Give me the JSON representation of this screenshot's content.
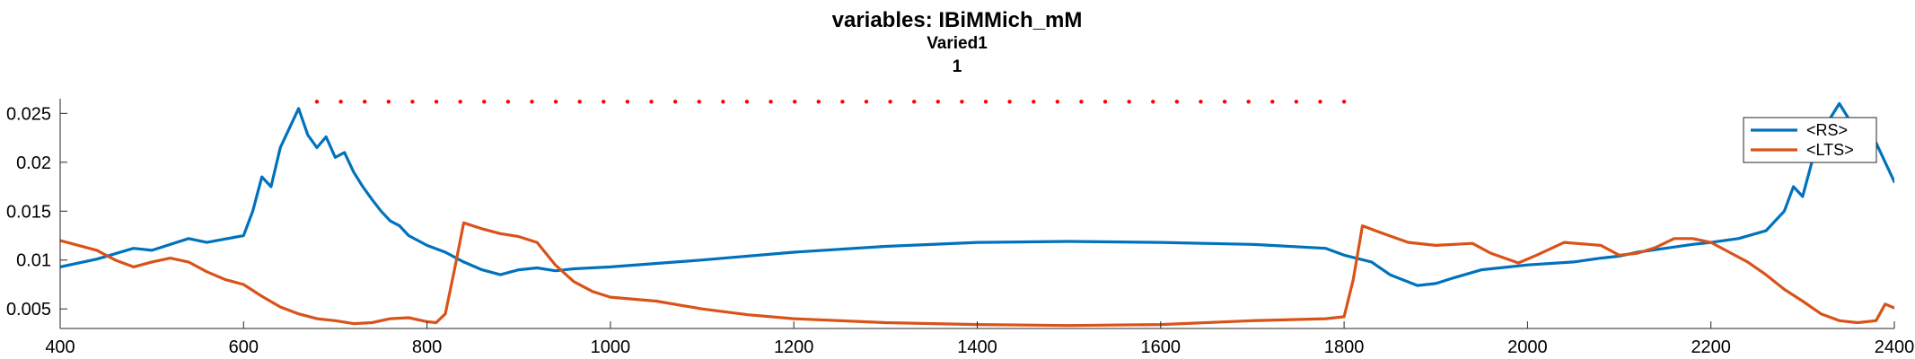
{
  "title_lines": [
    "variables: IBiMMich_mM",
    "Varied1",
    "1"
  ],
  "chart_data": {
    "type": "line",
    "xlim": [
      400,
      2400
    ],
    "ylim": [
      0.003,
      0.0265
    ],
    "x_ticks": [
      400,
      600,
      800,
      1000,
      1200,
      1400,
      1600,
      1800,
      2000,
      2200,
      2400
    ],
    "x_tick_labels": [
      "400",
      "600",
      "800",
      "1000",
      "1200",
      "1400",
      "1600",
      "1800",
      "2000",
      "2200",
      "2400"
    ],
    "y_ticks": [
      0.005,
      0.01,
      0.015,
      0.02,
      0.025
    ],
    "y_tick_labels": [
      "0.005",
      "0.01",
      "0.015",
      "0.02",
      "0.025"
    ],
    "grid": false,
    "legend_position": "top-right",
    "series": [
      {
        "name": "<RS>",
        "color": "#0072BD",
        "points": [
          [
            400,
            0.0093
          ],
          [
            440,
            0.0101
          ],
          [
            480,
            0.0112
          ],
          [
            500,
            0.011
          ],
          [
            540,
            0.0122
          ],
          [
            560,
            0.0118
          ],
          [
            600,
            0.0125
          ],
          [
            610,
            0.015
          ],
          [
            620,
            0.0185
          ],
          [
            630,
            0.0175
          ],
          [
            640,
            0.0215
          ],
          [
            650,
            0.0235
          ],
          [
            660,
            0.0255
          ],
          [
            670,
            0.0228
          ],
          [
            680,
            0.0215
          ],
          [
            690,
            0.0226
          ],
          [
            700,
            0.0205
          ],
          [
            710,
            0.021
          ],
          [
            720,
            0.019
          ],
          [
            730,
            0.0175
          ],
          [
            740,
            0.0162
          ],
          [
            750,
            0.015
          ],
          [
            760,
            0.014
          ],
          [
            770,
            0.0135
          ],
          [
            780,
            0.0125
          ],
          [
            800,
            0.0115
          ],
          [
            820,
            0.0108
          ],
          [
            840,
            0.0098
          ],
          [
            860,
            0.009
          ],
          [
            880,
            0.0085
          ],
          [
            900,
            0.009
          ],
          [
            920,
            0.0092
          ],
          [
            940,
            0.0089
          ],
          [
            960,
            0.0091
          ],
          [
            1000,
            0.0093
          ],
          [
            1100,
            0.01
          ],
          [
            1200,
            0.0108
          ],
          [
            1300,
            0.0114
          ],
          [
            1400,
            0.0118
          ],
          [
            1500,
            0.0119
          ],
          [
            1600,
            0.0118
          ],
          [
            1700,
            0.0116
          ],
          [
            1780,
            0.0112
          ],
          [
            1800,
            0.0105
          ],
          [
            1830,
            0.0098
          ],
          [
            1850,
            0.0085
          ],
          [
            1880,
            0.0074
          ],
          [
            1900,
            0.0076
          ],
          [
            1920,
            0.0082
          ],
          [
            1950,
            0.009
          ],
          [
            1980,
            0.0093
          ],
          [
            2000,
            0.0095
          ],
          [
            2050,
            0.0098
          ],
          [
            2080,
            0.0102
          ],
          [
            2100,
            0.0104
          ],
          [
            2120,
            0.0108
          ],
          [
            2150,
            0.0112
          ],
          [
            2180,
            0.0116
          ],
          [
            2200,
            0.0118
          ],
          [
            2230,
            0.0122
          ],
          [
            2260,
            0.013
          ],
          [
            2280,
            0.015
          ],
          [
            2290,
            0.0175
          ],
          [
            2300,
            0.0165
          ],
          [
            2310,
            0.02
          ],
          [
            2320,
            0.0215
          ],
          [
            2330,
            0.0245
          ],
          [
            2340,
            0.026
          ],
          [
            2350,
            0.0245
          ],
          [
            2360,
            0.0228
          ],
          [
            2370,
            0.023
          ],
          [
            2380,
            0.022
          ],
          [
            2390,
            0.02
          ],
          [
            2400,
            0.018
          ]
        ]
      },
      {
        "name": "<LTS>",
        "color": "#D95319",
        "points": [
          [
            400,
            0.012
          ],
          [
            420,
            0.0115
          ],
          [
            440,
            0.011
          ],
          [
            460,
            0.01
          ],
          [
            480,
            0.0093
          ],
          [
            500,
            0.0098
          ],
          [
            520,
            0.0102
          ],
          [
            540,
            0.0098
          ],
          [
            560,
            0.0088
          ],
          [
            580,
            0.008
          ],
          [
            600,
            0.0075
          ],
          [
            620,
            0.0063
          ],
          [
            640,
            0.0052
          ],
          [
            660,
            0.0045
          ],
          [
            680,
            0.004
          ],
          [
            700,
            0.0038
          ],
          [
            720,
            0.0035
          ],
          [
            740,
            0.0036
          ],
          [
            760,
            0.004
          ],
          [
            780,
            0.0041
          ],
          [
            800,
            0.0037
          ],
          [
            810,
            0.0036
          ],
          [
            820,
            0.0045
          ],
          [
            830,
            0.009
          ],
          [
            840,
            0.0138
          ],
          [
            860,
            0.0132
          ],
          [
            880,
            0.0127
          ],
          [
            900,
            0.0124
          ],
          [
            920,
            0.0118
          ],
          [
            940,
            0.0095
          ],
          [
            960,
            0.0078
          ],
          [
            980,
            0.0068
          ],
          [
            1000,
            0.0062
          ],
          [
            1050,
            0.0058
          ],
          [
            1100,
            0.005
          ],
          [
            1150,
            0.0044
          ],
          [
            1200,
            0.004
          ],
          [
            1300,
            0.0036
          ],
          [
            1400,
            0.0034
          ],
          [
            1500,
            0.0033
          ],
          [
            1600,
            0.0034
          ],
          [
            1700,
            0.0038
          ],
          [
            1780,
            0.004
          ],
          [
            1800,
            0.0042
          ],
          [
            1810,
            0.008
          ],
          [
            1820,
            0.0135
          ],
          [
            1840,
            0.0128
          ],
          [
            1870,
            0.0118
          ],
          [
            1900,
            0.0115
          ],
          [
            1940,
            0.0117
          ],
          [
            1960,
            0.0107
          ],
          [
            1990,
            0.0097
          ],
          [
            2010,
            0.0105
          ],
          [
            2040,
            0.0118
          ],
          [
            2080,
            0.0115
          ],
          [
            2100,
            0.0105
          ],
          [
            2120,
            0.0107
          ],
          [
            2140,
            0.0113
          ],
          [
            2160,
            0.0122
          ],
          [
            2180,
            0.0122
          ],
          [
            2200,
            0.0118
          ],
          [
            2220,
            0.0108
          ],
          [
            2240,
            0.0098
          ],
          [
            2260,
            0.0085
          ],
          [
            2280,
            0.007
          ],
          [
            2300,
            0.0058
          ],
          [
            2320,
            0.0045
          ],
          [
            2340,
            0.0038
          ],
          [
            2360,
            0.0036
          ],
          [
            2380,
            0.0038
          ],
          [
            2390,
            0.0055
          ],
          [
            2400,
            0.0051
          ]
        ]
      },
      {
        "name": "",
        "color": "#FF0000",
        "style": "dotted",
        "points": [
          [
            680,
            0.0262
          ],
          [
            1800,
            0.0262
          ]
        ]
      }
    ]
  }
}
